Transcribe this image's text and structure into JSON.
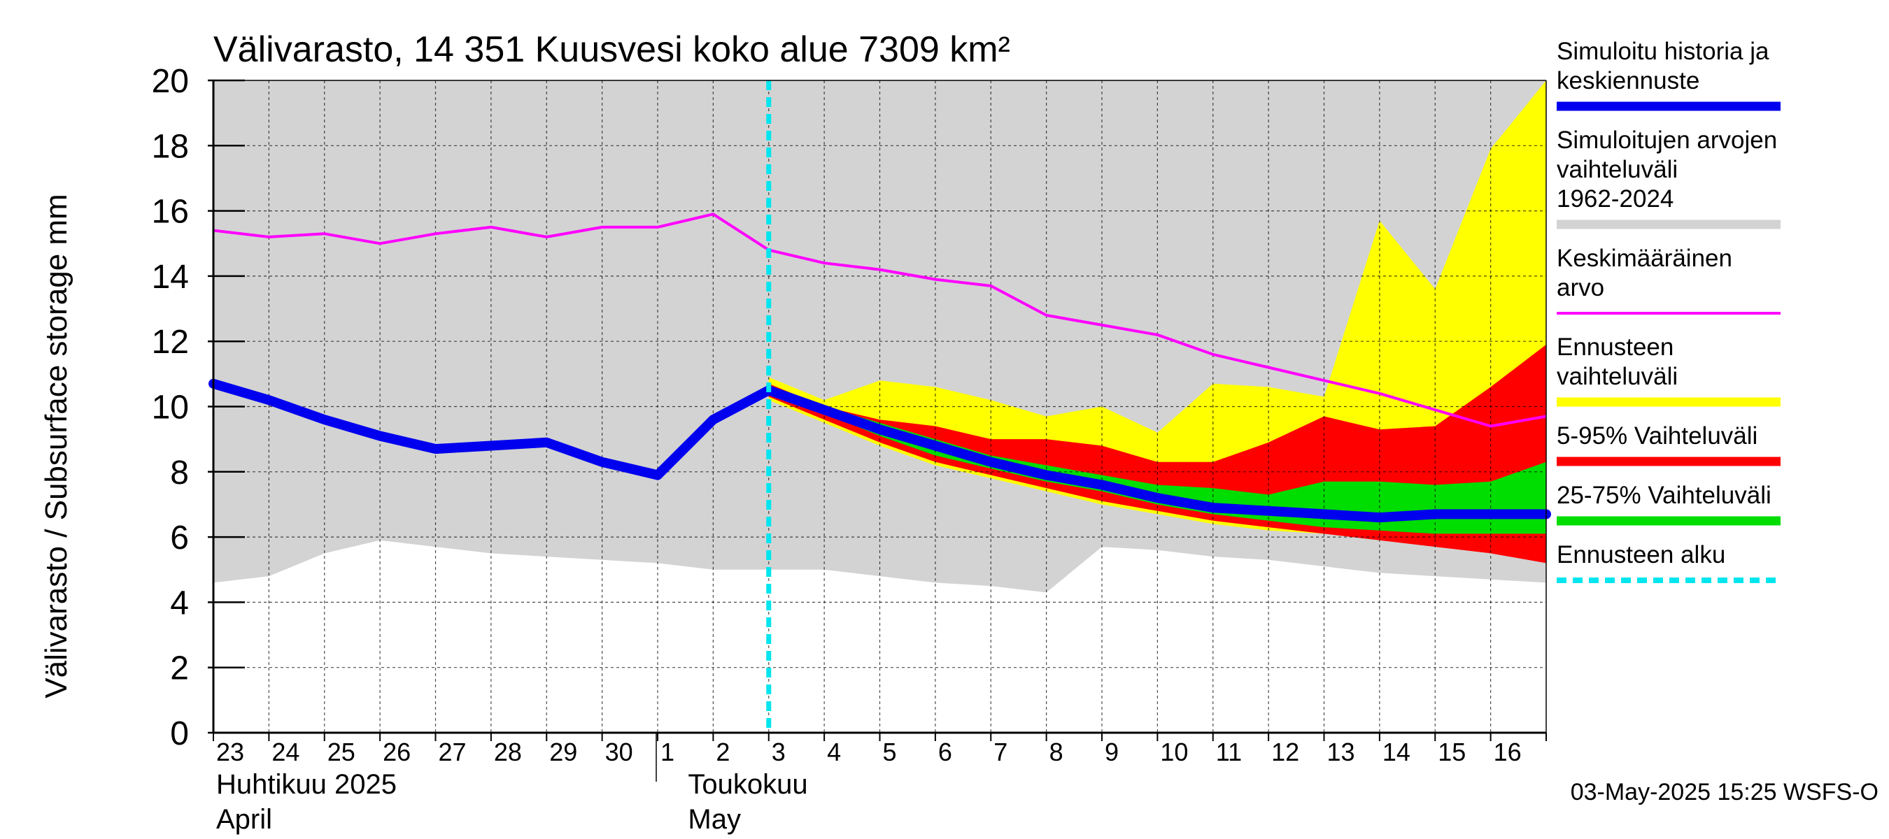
{
  "chart_data": {
    "type": "area",
    "title": "Välivarasto, 14 351 Kuusvesi koko alue 7309 km²",
    "ylabel": "Välivarasto / Subsurface storage  mm",
    "xlabel": "",
    "ylim": [
      0,
      20
    ],
    "yticks": [
      0,
      2,
      4,
      6,
      8,
      10,
      12,
      14,
      16,
      18,
      20
    ],
    "grid": true,
    "x": [
      "2025-04-23",
      "2025-04-24",
      "2025-04-25",
      "2025-04-26",
      "2025-04-27",
      "2025-04-28",
      "2025-04-29",
      "2025-04-30",
      "2025-05-01",
      "2025-05-02",
      "2025-05-03",
      "2025-05-04",
      "2025-05-05",
      "2025-05-06",
      "2025-05-07",
      "2025-05-08",
      "2025-05-09",
      "2025-05-10",
      "2025-05-11",
      "2025-05-12",
      "2025-05-13",
      "2025-05-14",
      "2025-05-15",
      "2025-05-16",
      "2025-05-17"
    ],
    "x_tick_labels": [
      "23",
      "24",
      "25",
      "26",
      "27",
      "28",
      "29",
      "30",
      "1",
      "2",
      "3",
      "4",
      "5",
      "6",
      "7",
      "8",
      "9",
      "10",
      "11",
      "12",
      "13",
      "14",
      "15",
      "16"
    ],
    "month_labels": [
      {
        "fi": "Huhtikuu  2025",
        "en": "April"
      },
      {
        "fi": "Toukokuu",
        "en": "May"
      }
    ],
    "forecast_start": "2025-05-03",
    "range_hist": {
      "lower": [
        4.6,
        4.8,
        5.5,
        5.9,
        5.7,
        5.5,
        5.4,
        5.3,
        5.2,
        5.0,
        5.0,
        5.0,
        4.8,
        4.6,
        4.5,
        4.3,
        5.7,
        5.6,
        5.4,
        5.3,
        5.1,
        4.9,
        4.8,
        4.7,
        4.6
      ],
      "upper": [
        20,
        20,
        20,
        20,
        20,
        20,
        20,
        20,
        20,
        20,
        20,
        20,
        20,
        20,
        20,
        20,
        20,
        20,
        20,
        20,
        20,
        20,
        20,
        20,
        20
      ]
    },
    "range_forecast": {
      "start_index": 10,
      "lower": [
        10.2,
        9.5,
        8.8,
        8.2,
        7.8,
        7.4,
        7.0,
        6.7,
        6.4,
        6.2,
        6.1,
        6.0,
        5.9,
        5.8,
        5.8
      ],
      "upper": [
        10.9,
        10.2,
        10.8,
        10.6,
        10.2,
        9.7,
        10.0,
        9.2,
        10.7,
        10.6,
        10.3,
        15.7,
        13.6,
        17.9,
        20.0
      ]
    },
    "range_5_95": {
      "start_index": 10,
      "lower": [
        10.3,
        9.6,
        8.9,
        8.3,
        7.9,
        7.5,
        7.1,
        6.8,
        6.5,
        6.3,
        6.1,
        5.9,
        5.7,
        5.5,
        5.2
      ],
      "upper": [
        10.7,
        10.0,
        9.6,
        9.4,
        9.0,
        9.0,
        8.8,
        8.3,
        8.3,
        8.9,
        9.7,
        9.3,
        9.4,
        10.6,
        11.9
      ]
    },
    "range_25_75": {
      "start_index": 10,
      "lower": [
        10.4,
        9.8,
        9.1,
        8.5,
        8.1,
        7.7,
        7.4,
        7.0,
        6.7,
        6.5,
        6.3,
        6.2,
        6.1,
        6.1,
        6.1
      ],
      "upper": [
        10.6,
        10.0,
        9.5,
        9.0,
        8.5,
        8.2,
        7.9,
        7.6,
        7.5,
        7.3,
        7.7,
        7.7,
        7.6,
        7.7,
        8.3
      ]
    },
    "series": [
      {
        "name": "Simuloitu historia ja keskiennuste",
        "color": "#0000ee",
        "values": [
          10.7,
          10.2,
          9.6,
          9.1,
          8.7,
          8.8,
          8.9,
          8.3,
          7.9,
          9.6,
          10.5,
          9.9,
          9.3,
          8.8,
          8.3,
          7.9,
          7.6,
          7.2,
          6.9,
          6.8,
          6.7,
          6.6,
          6.7,
          6.7,
          6.7
        ]
      },
      {
        "name": "Keskimääräinen arvo",
        "color": "#ff00ff",
        "values": [
          15.4,
          15.2,
          15.3,
          15.0,
          15.3,
          15.5,
          15.2,
          15.5,
          15.5,
          15.9,
          14.8,
          14.4,
          14.2,
          13.9,
          13.7,
          12.8,
          12.5,
          12.2,
          11.6,
          11.2,
          10.8,
          10.4,
          9.9,
          9.4,
          9.7
        ]
      }
    ],
    "legend": [
      {
        "label": "Simuloitu historia ja keskiennuste",
        "color": "#0000ee",
        "style": "thick"
      },
      {
        "label": "Simuloitujen arvojen vaihteluväli 1962-2024",
        "color": "#d3d3d3",
        "style": "band"
      },
      {
        "label": "Keskimääräinen arvo",
        "color": "#ff00ff",
        "style": "thin"
      },
      {
        "label": "Ennusteen vaihteluväli",
        "color": "#ffff00",
        "style": "band"
      },
      {
        "label": "5-95% Vaihteluväli",
        "color": "#ff0000",
        "style": "band"
      },
      {
        "label": "25-75% Vaihteluväli",
        "color": "#00dd00",
        "style": "band"
      },
      {
        "label": "Ennusteen alku",
        "color": "#00e5ee",
        "style": "dashed"
      }
    ],
    "legend_position": "right",
    "colors": {
      "hist_range": "#d3d3d3",
      "forecast_range": "#ffff00",
      "range_5_95": "#ff0000",
      "range_25_75": "#00dd00",
      "forecast_start": "#00e5ee"
    }
  },
  "footer": {
    "timestamp": "03-May-2025 15:25 WSFS-O"
  }
}
